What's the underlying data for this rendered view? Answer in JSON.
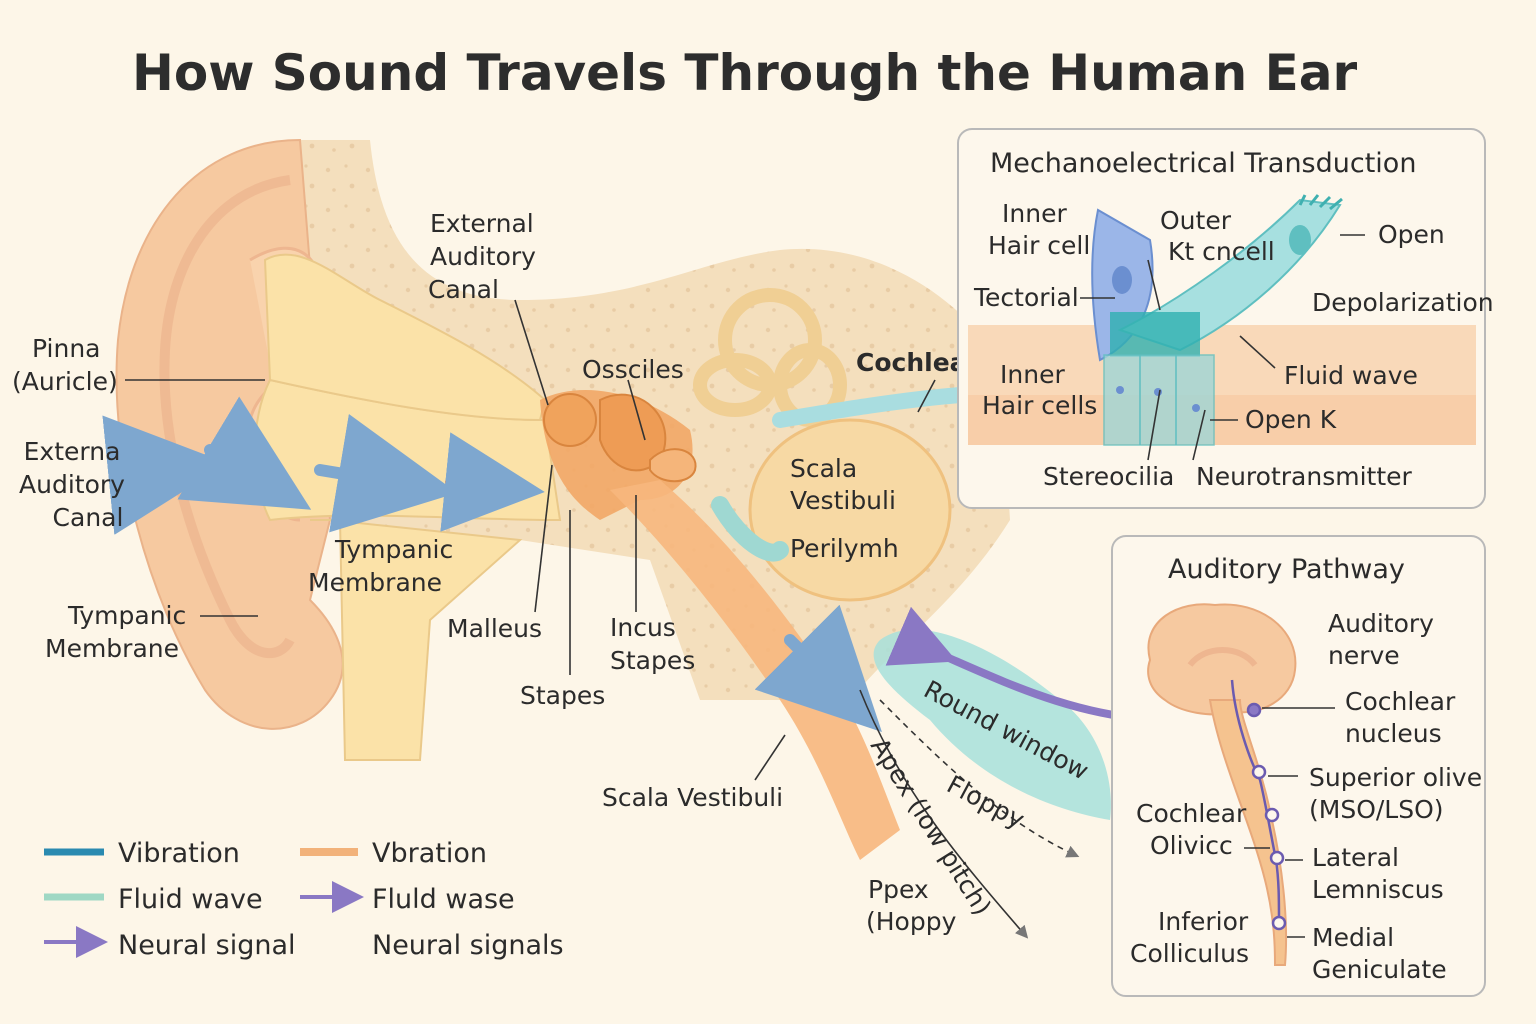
{
  "title": "How Sound Travels Through the Human Ear",
  "main_labels": {
    "pinna": [
      "Pinna",
      "(Auricle)"
    ],
    "external_canal_left": [
      "Externa",
      "Auditory",
      "Canal"
    ],
    "external_canal_top": [
      "External",
      "Auditory",
      "Canal"
    ],
    "tympanic_left": [
      "Tympanic",
      "Membrane"
    ],
    "tympanic_center": [
      "Tympanic",
      "Membrane"
    ],
    "ossicles": "Ossciles",
    "malleus": "Malleus",
    "incus_stapes": [
      "Incus",
      "Stapes"
    ],
    "stapes": "Stapes",
    "cochlea": "Cochlea",
    "scala_vestibuli_inner": [
      "Scala",
      "Vestibuli"
    ],
    "perilymph": "Perilymh",
    "scala_vestibuli_bottom": "Scala Vestibuli",
    "round_window": "Round window",
    "floppy": "Floppy",
    "apex_rotated": "Apex (low pitch)",
    "pex_hoppy": [
      "Ppex",
      "(Hoppy"
    ]
  },
  "transduction_panel": {
    "title": "Mechanoelectrical Transduction",
    "inner_hair_cell": [
      "Inner",
      "Hair cell"
    ],
    "outer": [
      "Outer",
      "Kt cncell"
    ],
    "open": "Open",
    "tectorial": "Tectorial",
    "depolarization": "Depolarization",
    "fluid_wave": "Fluid wave",
    "inner_hair_cells": [
      "Inner",
      "Hair cells"
    ],
    "open_k": "Open K",
    "stereocilia": "Stereocilia",
    "neurotransmitter": "Neurotransmitter"
  },
  "pathway_panel": {
    "title": "Auditory Pathway",
    "auditory_nerve": [
      "Auditory",
      "nerve"
    ],
    "cochlear_nucleus": [
      "Cochlear",
      "nucleus"
    ],
    "superior_olive": [
      "Superior olive",
      "(MSO/LSO)"
    ],
    "cochlear_olivicc": [
      "Cochlear",
      "Olivicc"
    ],
    "lateral_lemniscus": [
      "Lateral",
      "Lemniscus"
    ],
    "inferior_colliculus": [
      "Inferior",
      "Colliculus"
    ],
    "medial_geniculate": [
      "Medial",
      "Geniculate"
    ]
  },
  "legend": [
    {
      "label": "Vibration",
      "marker": "line",
      "color": "#2a8ab0"
    },
    {
      "label": "Vbration",
      "marker": "line",
      "color": "#f2b27a"
    },
    {
      "label": "Fluid wave",
      "marker": "line",
      "color": "#9fd8c4"
    },
    {
      "label": "Fluld wase",
      "marker": "arrow",
      "color": "#8a78c4"
    },
    {
      "label": "Neural signal",
      "marker": "arrow",
      "color": "#8a78c4"
    },
    {
      "label": "Neural signals",
      "marker": "none",
      "color": ""
    }
  ],
  "colors": {
    "background": "#fdf6e8",
    "skin": "#f6c9a0",
    "canal": "#fbe2a8",
    "orange": "#f2a766",
    "bone": "#f3dcb8",
    "teal": "#8fd3cf",
    "purple": "#8a78c4",
    "blue_arrow": "#7ea7cf"
  }
}
